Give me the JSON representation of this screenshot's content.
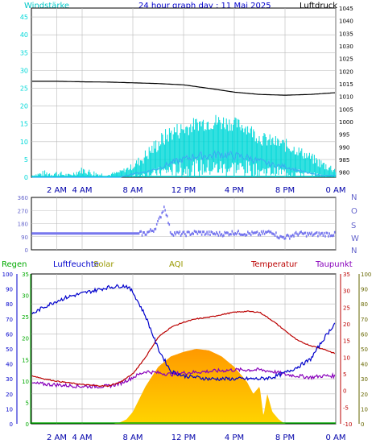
{
  "header": {
    "title": "24 hour graph day : 11 Mai 2025",
    "left_label": "Windstärke",
    "right_label": "Luftdruck"
  },
  "colors": {
    "wind": "#00d8d8",
    "gust": "#3ab0f0",
    "pressure": "#000000",
    "direction": "#7777ee",
    "humidity": "#0000cc",
    "temperature": "#bb0000",
    "dewpoint": "#8800bb",
    "rain": "#00aa00",
    "solar_top": "#ff9900",
    "solar_bottom": "#ffd400",
    "aqi": "#999900",
    "grid": "#bbbbbb"
  },
  "chart_data": [
    {
      "type": "line",
      "name": "wind-pressure",
      "x_ticks": [
        "2 AM",
        "4 AM",
        "8 AM",
        "12 PM",
        "4 PM",
        "8 PM",
        "0 AM"
      ],
      "x_tick_hours": [
        2,
        4,
        8,
        12,
        16,
        20,
        24
      ],
      "x_range": [
        0,
        24
      ],
      "left_axis": {
        "label": "Windstärke",
        "range": [
          0,
          47.5
        ],
        "ticks": [
          "0",
          "5",
          "10",
          "15",
          "20",
          "25",
          "30",
          "35",
          "40",
          "45"
        ]
      },
      "right_axis": {
        "label": "Luftdruck",
        "range": [
          978,
          1045
        ],
        "ticks": [
          "980",
          "985",
          "990",
          "995",
          "1000",
          "1005",
          "1010",
          "1015",
          "1020",
          "1025",
          "1030",
          "1035",
          "1040",
          "1045"
        ]
      },
      "series": [
        {
          "name": "pressure",
          "axis": "right",
          "x": [
            0,
            2,
            4,
            6,
            8,
            10,
            12,
            14,
            16,
            18,
            20,
            22,
            24
          ],
          "y": [
            1016.0,
            1016.0,
            1015.8,
            1015.7,
            1015.4,
            1015.1,
            1014.6,
            1013.2,
            1011.7,
            1010.8,
            1010.5,
            1010.8,
            1011.5
          ]
        },
        {
          "name": "wind",
          "axis": "left",
          "x": [
            0,
            1,
            2,
            3,
            4,
            5,
            6,
            7,
            8,
            9,
            10,
            11,
            12,
            13,
            14,
            15,
            16,
            17,
            18,
            19,
            20,
            21,
            22,
            23,
            24
          ],
          "y": [
            0,
            0,
            0,
            0,
            1,
            0,
            0,
            1,
            2,
            4,
            7,
            10,
            11,
            13,
            13,
            13,
            13,
            12,
            9,
            8,
            7,
            6,
            4,
            2,
            1
          ],
          "peak": [
            1,
            2,
            2,
            1,
            3,
            2,
            1,
            2,
            4,
            8,
            12,
            15,
            16,
            17,
            18,
            18,
            17,
            16,
            13,
            12,
            11,
            9,
            7,
            5,
            3
          ]
        },
        {
          "name": "gust",
          "axis": "left",
          "x": [
            0,
            1,
            2,
            3,
            4,
            5,
            6,
            7,
            8,
            9,
            10,
            11,
            12,
            13,
            14,
            15,
            16,
            17,
            18,
            19,
            20,
            21,
            22,
            23,
            24
          ],
          "y": [
            0,
            0,
            0,
            0,
            0,
            0,
            0,
            0,
            1,
            1.5,
            2.5,
            4,
            5,
            6,
            6,
            6.5,
            6,
            5.5,
            4.5,
            3.5,
            3,
            2,
            1,
            0.5,
            0.5
          ]
        }
      ]
    },
    {
      "type": "scatter",
      "name": "wind-direction",
      "x_range": [
        0,
        24
      ],
      "y_axis": {
        "range": [
          0,
          360
        ],
        "ticks": [
          "0",
          "90",
          "180",
          "270",
          "360"
        ],
        "right_ticks": [
          "N",
          "W",
          "S",
          "O",
          "N"
        ]
      },
      "series": [
        {
          "name": "direction",
          "x": [
            0,
            2,
            4,
            6,
            8,
            9,
            9.7,
            10.1,
            10.5,
            11,
            12,
            13,
            14,
            15,
            16,
            17,
            18,
            19,
            19.6,
            20.3,
            21,
            22,
            23,
            24
          ],
          "y": [
            112,
            112,
            112,
            112,
            112,
            112,
            140,
            210,
            300,
            115,
            108,
            118,
            112,
            108,
            118,
            112,
            108,
            125,
            85,
            90,
            112,
            105,
            108,
            106
          ]
        }
      ]
    },
    {
      "type": "line",
      "name": "temperature-humidity-solar",
      "x_ticks": [
        "2 AM",
        "4 AM",
        "8 AM",
        "12 PM",
        "4 PM",
        "8 PM",
        "0 AM"
      ],
      "x_tick_hours": [
        2,
        4,
        8,
        12,
        16,
        20,
        24
      ],
      "x_range": [
        0,
        24
      ],
      "legend": [
        "Regen",
        "Luftfeuchte",
        "Solar",
        "AQI",
        "Temperatur",
        "Taupunkt"
      ],
      "axes": {
        "humidity": {
          "label": "Luftfeuchte",
          "range": [
            0,
            100
          ],
          "ticks": [
            "0",
            "10",
            "20",
            "30",
            "40",
            "50",
            "60",
            "70",
            "80",
            "90",
            "100"
          ]
        },
        "rain": {
          "label": "Regen",
          "range": [
            0,
            35
          ],
          "ticks": [
            "0",
            "5",
            "10",
            "15",
            "20",
            "25",
            "30",
            "35"
          ]
        },
        "temperature": {
          "label": "Temperatur",
          "range": [
            -10,
            35
          ],
          "ticks": [
            "-10",
            "-5",
            "0",
            "5",
            "10",
            "15",
            "20",
            "25",
            "30",
            "35"
          ]
        },
        "dewpoint": {
          "label": "Taupunkt",
          "range": [
            0,
            100
          ],
          "ticks": [
            "0",
            "10",
            "20",
            "30",
            "40",
            "50",
            "60",
            "70",
            "80",
            "90",
            "100"
          ]
        }
      },
      "series": [
        {
          "name": "Luftfeuchte",
          "axis": "humidity",
          "x": [
            0,
            1,
            2,
            3,
            4,
            5,
            6,
            7,
            7.5,
            8,
            9,
            10,
            11,
            12,
            13,
            14,
            15,
            16,
            17,
            18,
            19,
            20,
            21,
            22,
            23,
            24
          ],
          "y": [
            73,
            78,
            82,
            85,
            87,
            89,
            91,
            92,
            92,
            88,
            72,
            50,
            35,
            32,
            31,
            30,
            30,
            30,
            30,
            30,
            31,
            34,
            38,
            43,
            56,
            68
          ]
        },
        {
          "name": "Temperatur",
          "axis": "temperature",
          "x": [
            0,
            1,
            2,
            3,
            4,
            5,
            6,
            7,
            8,
            9,
            10,
            11,
            12,
            13,
            14,
            15,
            16,
            17,
            18,
            19,
            20,
            21,
            22,
            23,
            24
          ],
          "y": [
            4.5,
            3.5,
            2.8,
            2.3,
            1.8,
            1.5,
            1.3,
            2.5,
            5.0,
            10.0,
            16.0,
            19.0,
            20.5,
            21.5,
            22.0,
            22.8,
            23.5,
            23.8,
            23.5,
            21.0,
            18.0,
            15.0,
            13.5,
            12.5,
            11.0
          ]
        },
        {
          "name": "Taupunkt",
          "axis": "dewpoint",
          "x": [
            0,
            2,
            4,
            6,
            7,
            8,
            9,
            10,
            11,
            12,
            14,
            16,
            18,
            19,
            20,
            21,
            22,
            23,
            24
          ],
          "y": [
            27,
            26,
            25,
            25,
            27,
            31,
            35,
            34,
            33,
            34,
            35,
            36,
            36,
            35,
            33,
            32,
            31,
            32,
            32
          ]
        },
        {
          "name": "Solar",
          "axis": "humidity",
          "x": [
            0,
            6.5,
            7,
            7.5,
            8,
            9,
            10,
            11,
            12,
            13,
            14,
            15,
            16,
            17,
            17.5,
            18,
            18.3,
            18.6,
            19,
            19.5,
            20,
            24
          ],
          "y": [
            0,
            0,
            1,
            3,
            8,
            25,
            38,
            45,
            48,
            50,
            49,
            45,
            38,
            28,
            20,
            25,
            5,
            20,
            8,
            3,
            0,
            0
          ]
        },
        {
          "name": "Regen",
          "axis": "rain",
          "x": [
            0,
            24
          ],
          "y": [
            0,
            0
          ]
        }
      ]
    }
  ]
}
